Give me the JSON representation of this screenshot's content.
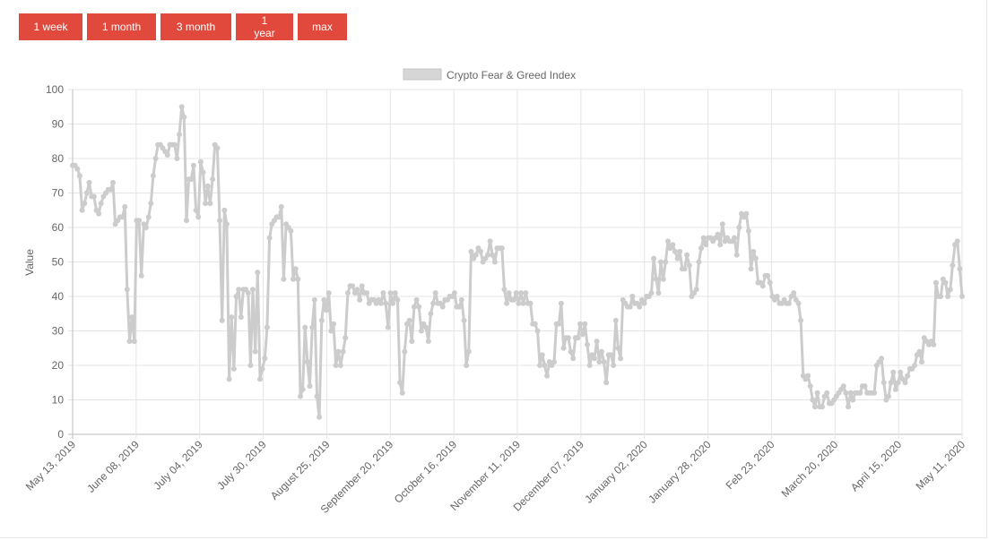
{
  "range_buttons": [
    {
      "label": "1 week"
    },
    {
      "label": "1 month"
    },
    {
      "label": "3 month"
    },
    {
      "label": "1 year"
    },
    {
      "label": "max"
    }
  ],
  "colors": {
    "button_bg": "#e0493b",
    "line": "#cccccc",
    "grid": "#e5e5e5"
  },
  "chart_data": {
    "type": "line",
    "title": "",
    "xlabel": "",
    "ylabel": "Value",
    "legend": {
      "position": "top",
      "entries": [
        "Crypto Fear & Greed Index"
      ]
    },
    "grid": true,
    "ylim": [
      0,
      100
    ],
    "y_ticks": [
      0,
      10,
      20,
      30,
      40,
      50,
      60,
      70,
      80,
      90,
      100
    ],
    "x_range": [
      "2019-05-13",
      "2020-05-11"
    ],
    "x_ticks": [
      {
        "date": "2019-05-13",
        "label": "May 13, 2019"
      },
      {
        "date": "2019-06-08",
        "label": "June 08, 2019"
      },
      {
        "date": "2019-07-04",
        "label": "July 04, 2019"
      },
      {
        "date": "2019-07-30",
        "label": "July 30, 2019"
      },
      {
        "date": "2019-08-25",
        "label": "August 25, 2019"
      },
      {
        "date": "2019-09-20",
        "label": "September 20, 2019"
      },
      {
        "date": "2019-10-16",
        "label": "October 16, 2019"
      },
      {
        "date": "2019-11-11",
        "label": "November 11, 2019"
      },
      {
        "date": "2019-12-07",
        "label": "December 07, 2019"
      },
      {
        "date": "2020-01-02",
        "label": "January 02, 2020"
      },
      {
        "date": "2020-01-28",
        "label": "January 28, 2020"
      },
      {
        "date": "2020-02-23",
        "label": "Feb 23, 2020"
      },
      {
        "date": "2020-03-20",
        "label": "March 20, 2020"
      },
      {
        "date": "2020-04-15",
        "label": "April 15, 2020"
      },
      {
        "date": "2020-05-11",
        "label": "May 11, 2020"
      }
    ],
    "series": [
      {
        "name": "Crypto Fear & Greed Index",
        "values": [
          78,
          78,
          77,
          75,
          65,
          67,
          70,
          73,
          69,
          69,
          65,
          64,
          67,
          69,
          70,
          71,
          71,
          73,
          61,
          62,
          63,
          63,
          66,
          42,
          27,
          34,
          27,
          62,
          62,
          46,
          61,
          60,
          63,
          67,
          75,
          80,
          84,
          84,
          83,
          82,
          81,
          84,
          84,
          84,
          80,
          87,
          95,
          92,
          62,
          74,
          74,
          78,
          65,
          63,
          79,
          76,
          67,
          72,
          67,
          74,
          84,
          83,
          62,
          33,
          65,
          61,
          16,
          34,
          19,
          40,
          42,
          34,
          42,
          42,
          41,
          20,
          42,
          24,
          47,
          16,
          19,
          22,
          31,
          57,
          61,
          62,
          63,
          63,
          66,
          45,
          61,
          60,
          59,
          45,
          48,
          45,
          11,
          13,
          31,
          21,
          14,
          31,
          39,
          11,
          5,
          33,
          39,
          36,
          41,
          30,
          32,
          20,
          24,
          20,
          24,
          28,
          41,
          43,
          43,
          41,
          42,
          39,
          43,
          41,
          41,
          38,
          39,
          39,
          38,
          39,
          38,
          41,
          38,
          31,
          41,
          38,
          41,
          39,
          15,
          12,
          24,
          32,
          33,
          27,
          37,
          39,
          37,
          30,
          32,
          31,
          27,
          35,
          38,
          41,
          38,
          38,
          37,
          39,
          39,
          40,
          40,
          41,
          37,
          37,
          39,
          33,
          20,
          24,
          53,
          51,
          52,
          54,
          53,
          50,
          51,
          52,
          56,
          52,
          50,
          54,
          54,
          54,
          42,
          38,
          41,
          39,
          39,
          41,
          38,
          41,
          38,
          41,
          38,
          38,
          32,
          32,
          30,
          20,
          23,
          20,
          17,
          21,
          20,
          21,
          32,
          32,
          38,
          25,
          28,
          28,
          24,
          22,
          28,
          28,
          32,
          29,
          32,
          26,
          20,
          23,
          22,
          27,
          21,
          24,
          21,
          15,
          23,
          23,
          20,
          33,
          25,
          22,
          39,
          38,
          37,
          37,
          40,
          38,
          38,
          37,
          39,
          38,
          40,
          40,
          41,
          51,
          45,
          41,
          50,
          45,
          50,
          56,
          54,
          55,
          53,
          51,
          53,
          48,
          48,
          52,
          49,
          40,
          41,
          42,
          50,
          54,
          57,
          55,
          57,
          57,
          56,
          57,
          58,
          55,
          61,
          56,
          57,
          56,
          56,
          57,
          52,
          60,
          64,
          63,
          64,
          59,
          48,
          53,
          51,
          44,
          44,
          43,
          46,
          46,
          44,
          40,
          39,
          40,
          38,
          38,
          39,
          38,
          38,
          40,
          41,
          39,
          38,
          33,
          17,
          16,
          17,
          14,
          10,
          8,
          12,
          8,
          8,
          11,
          12,
          9,
          9,
          10,
          11,
          12,
          13,
          14,
          12,
          8,
          12,
          10,
          12,
          12,
          12,
          14,
          14,
          12,
          12,
          12,
          12,
          20,
          21,
          22,
          15,
          10,
          11,
          15,
          18,
          13,
          15,
          18,
          16,
          15,
          17,
          19,
          19,
          20,
          23,
          24,
          21,
          28,
          27,
          26,
          27,
          26,
          44,
          40,
          40,
          45,
          44,
          40,
          42,
          49,
          55,
          56,
          48,
          40
        ]
      }
    ]
  }
}
